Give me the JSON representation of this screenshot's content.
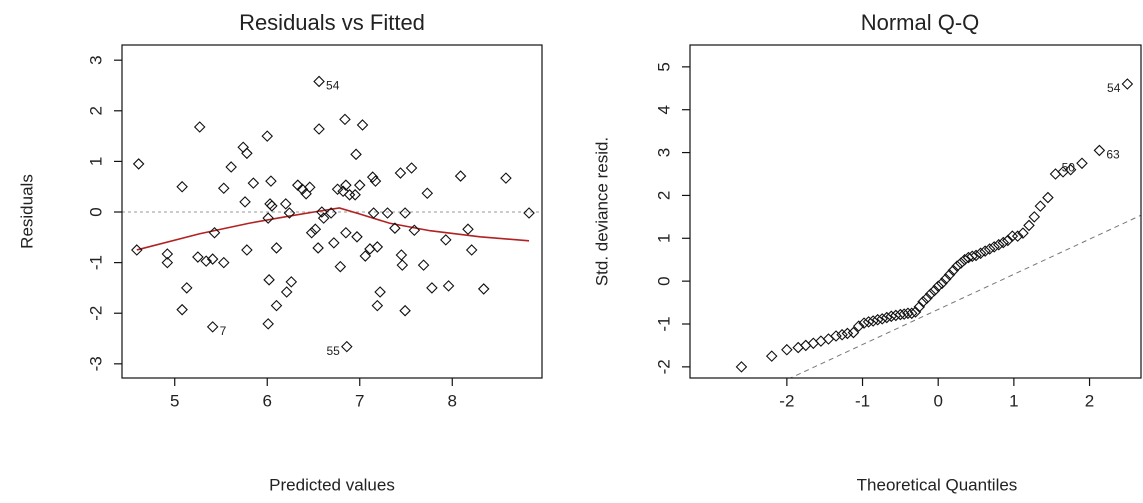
{
  "chart_data": [
    {
      "type": "scatter",
      "title": "Residuals vs Fitted",
      "x_label": "Predicted values",
      "y_label": "Residuals",
      "xlim": [
        4.43,
        8.97
      ],
      "ylim": [
        -3.28,
        3.3
      ],
      "xticks": [
        5,
        6,
        7,
        8
      ],
      "yticks": [
        -3,
        -2,
        -1,
        0,
        1,
        2,
        3
      ],
      "hline": 0,
      "x": [
        4.61,
        4.59,
        4.92,
        4.92,
        5.08,
        5.13,
        5.08,
        5.27,
        5.25,
        5.34,
        5.41,
        5.43,
        5.41,
        5.53,
        5.53,
        5.61,
        5.74,
        5.78,
        5.76,
        5.85,
        5.78,
        6.0,
        6.04,
        6.03,
        6.05,
        6.01,
        6.1,
        6.02,
        6.1,
        6.01,
        6.2,
        6.21,
        6.26,
        6.24,
        6.33,
        6.38,
        6.42,
        6.46,
        6.48,
        6.52,
        6.55,
        6.56,
        6.56,
        6.59,
        6.61,
        6.69,
        6.72,
        6.79,
        6.84,
        6.76,
        6.82,
        6.85,
        6.85,
        6.89,
        6.95,
        6.96,
        6.97,
        7.03,
        7.0,
        6.86,
        7.06,
        7.11,
        7.14,
        7.17,
        7.15,
        7.19,
        7.22,
        7.19,
        7.3,
        7.38,
        7.44,
        7.49,
        7.45,
        7.49,
        7.56,
        7.46,
        7.59,
        7.69,
        7.73,
        7.78,
        7.96,
        7.93,
        8.09,
        8.17,
        8.21,
        8.34,
        8.58,
        8.83
      ],
      "values": [
        0.95,
        -0.75,
        -0.83,
        -1.0,
        0.5,
        -1.5,
        -1.93,
        1.68,
        -0.89,
        -0.97,
        -0.93,
        -0.41,
        -2.27,
        -1.0,
        0.47,
        0.89,
        1.28,
        1.16,
        0.2,
        0.57,
        -0.75,
        1.5,
        0.61,
        0.16,
        0.12,
        -0.12,
        -0.71,
        -1.34,
        -1.85,
        -2.21,
        0.16,
        -1.58,
        -1.38,
        -0.02,
        0.53,
        0.45,
        0.36,
        0.49,
        -0.41,
        -0.34,
        -0.71,
        1.64,
        2.58,
        0.0,
        -0.12,
        -0.02,
        -0.61,
        -1.08,
        1.83,
        0.45,
        0.41,
        0.53,
        -0.41,
        0.34,
        0.34,
        1.14,
        -0.49,
        1.72,
        0.53,
        -2.66,
        -0.87,
        -0.73,
        0.69,
        0.61,
        -0.02,
        -1.85,
        -1.58,
        -0.69,
        -0.02,
        -0.32,
        0.77,
        -0.02,
        -0.85,
        -1.95,
        0.87,
        -1.05,
        -0.36,
        -1.05,
        0.37,
        -1.5,
        -1.46,
        -0.55,
        0.71,
        -0.34,
        -0.75,
        -1.52,
        0.67,
        -0.02
      ],
      "point_labels": [
        null,
        null,
        null,
        null,
        null,
        null,
        null,
        null,
        null,
        null,
        null,
        null,
        "7",
        null,
        null,
        null,
        null,
        null,
        null,
        null,
        null,
        null,
        null,
        null,
        null,
        null,
        null,
        null,
        null,
        null,
        null,
        null,
        null,
        null,
        null,
        null,
        null,
        null,
        null,
        null,
        null,
        null,
        "54",
        null,
        null,
        null,
        null,
        null,
        null,
        null,
        null,
        null,
        null,
        null,
        null,
        null,
        null,
        null,
        null,
        "55",
        null,
        null,
        null,
        null,
        null,
        null,
        null,
        null,
        null,
        null,
        null,
        null,
        null,
        null,
        null,
        null,
        null,
        null,
        null,
        null,
        null,
        null,
        null,
        null,
        null,
        null,
        null,
        null
      ],
      "smooth": {
        "color": "#b22222",
        "x": [
          4.59,
          5.27,
          5.81,
          6.24,
          6.57,
          6.78,
          7.0,
          7.32,
          7.76,
          8.3,
          8.83
        ],
        "values": [
          -0.75,
          -0.43,
          -0.22,
          -0.08,
          0.02,
          0.08,
          -0.04,
          -0.22,
          -0.37,
          -0.49,
          -0.57
        ]
      }
    },
    {
      "type": "scatter",
      "title": "Normal Q-Q",
      "x_label": "Theoretical Quantiles",
      "y_label": "Std. deviance resid.",
      "xlim": [
        -3.28,
        2.68
      ],
      "ylim": [
        -2.26,
        5.51
      ],
      "xticks": [
        -2,
        -1,
        0,
        1,
        2
      ],
      "yticks": [
        -2,
        -1,
        0,
        1,
        2,
        3,
        4,
        5
      ],
      "abline": {
        "intercept": -0.66,
        "slope": 0.82
      },
      "x": [
        -2.6,
        -2.2,
        -2.0,
        -1.85,
        -1.75,
        -1.65,
        -1.55,
        -1.45,
        -1.35,
        -1.27,
        -1.2,
        -1.12,
        -1.05,
        -0.98,
        -0.92,
        -0.86,
        -0.8,
        -0.74,
        -0.68,
        -0.62,
        -0.56,
        -0.5,
        -0.45,
        -0.4,
        -0.35,
        -0.3,
        -0.25,
        -0.2,
        -0.15,
        -0.1,
        -0.05,
        0,
        0.05,
        0.1,
        0.15,
        0.2,
        0.25,
        0.3,
        0.35,
        0.4,
        0.45,
        0.5,
        0.56,
        0.62,
        0.68,
        0.74,
        0.8,
        0.86,
        0.92,
        0.98,
        1.05,
        1.12,
        1.2,
        1.27,
        1.35,
        1.45,
        1.55,
        1.65,
        1.75,
        1.9,
        2.13,
        2.5
      ],
      "values": [
        -2.0,
        -1.75,
        -1.6,
        -1.55,
        -1.5,
        -1.45,
        -1.4,
        -1.35,
        -1.28,
        -1.25,
        -1.22,
        -1.2,
        -1.05,
        -0.98,
        -0.95,
        -0.93,
        -0.9,
        -0.88,
        -0.85,
        -0.82,
        -0.8,
        -0.78,
        -0.77,
        -0.75,
        -0.75,
        -0.72,
        -0.6,
        -0.48,
        -0.4,
        -0.3,
        -0.22,
        -0.12,
        -0.05,
        0.05,
        0.15,
        0.25,
        0.35,
        0.42,
        0.5,
        0.55,
        0.58,
        0.6,
        0.65,
        0.7,
        0.75,
        0.8,
        0.85,
        0.9,
        0.95,
        1.05,
        1.05,
        1.12,
        1.3,
        1.5,
        1.75,
        1.95,
        2.5,
        2.55,
        2.6,
        2.75,
        3.05,
        4.6
      ],
      "point_labels": [
        null,
        null,
        null,
        null,
        null,
        null,
        null,
        null,
        null,
        null,
        null,
        null,
        null,
        null,
        null,
        null,
        null,
        null,
        null,
        null,
        null,
        null,
        null,
        null,
        null,
        null,
        null,
        null,
        null,
        null,
        null,
        null,
        null,
        null,
        null,
        null,
        null,
        null,
        null,
        null,
        null,
        null,
        null,
        null,
        null,
        null,
        null,
        null,
        null,
        null,
        null,
        null,
        null,
        null,
        null,
        null,
        null,
        null,
        null,
        "50",
        "63",
        "54"
      ]
    }
  ]
}
